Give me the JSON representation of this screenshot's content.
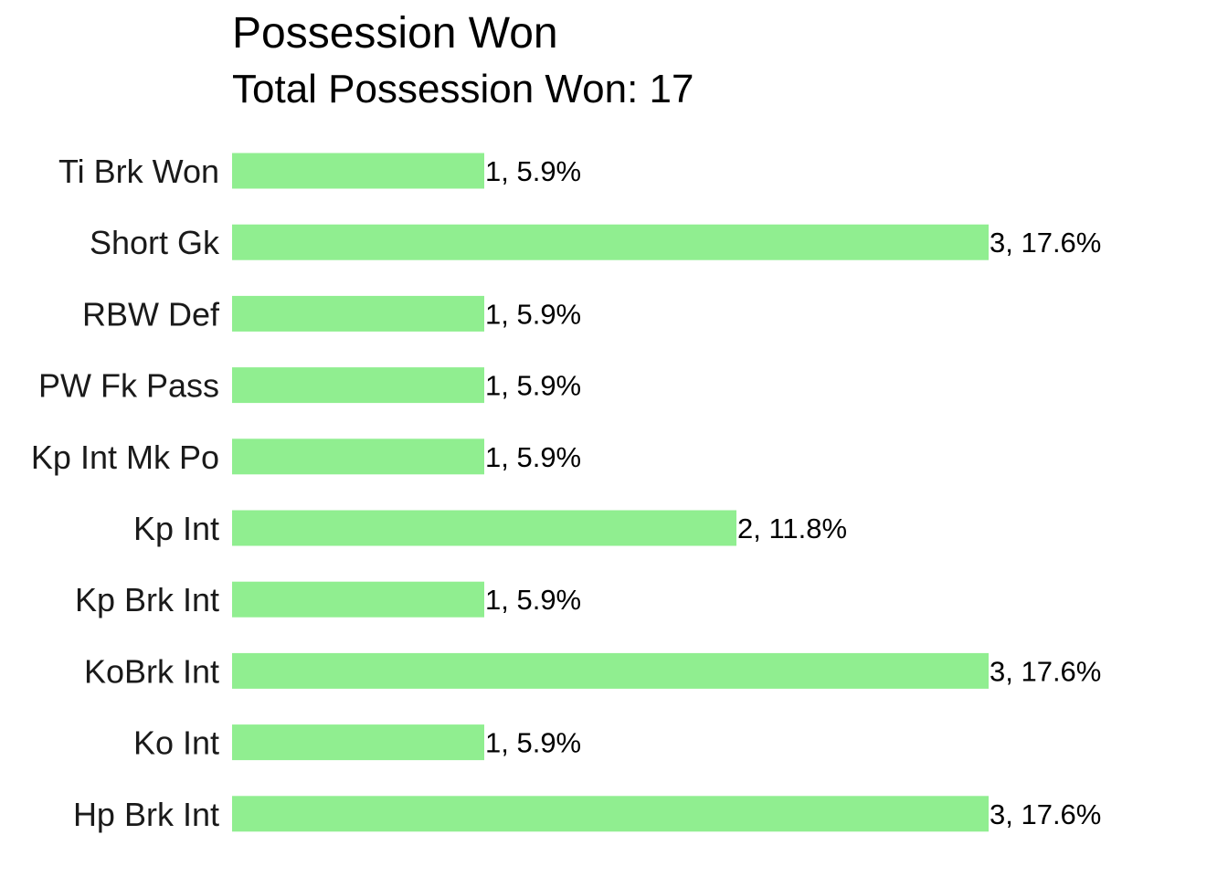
{
  "chart_data": {
    "type": "bar",
    "orientation": "horizontal",
    "title": "Possession Won",
    "subtitle": "Total Possession Won: 17",
    "xlabel": "",
    "ylabel": "",
    "grid": false,
    "legend": "none",
    "bar_color": "#90EE90",
    "xlim": [
      0,
      3
    ],
    "categories": [
      "Ti Brk Won",
      "Short Gk",
      "RBW Def",
      "PW Fk Pass",
      "Kp Int Mk Po",
      "Kp Int",
      "Kp Brk Int",
      "KoBrk Int",
      "Ko Int",
      "Hp Brk Int"
    ],
    "values": [
      1,
      3,
      1,
      1,
      1,
      2,
      1,
      3,
      1,
      3
    ],
    "data_labels": [
      "1, 5.9%",
      "3, 17.6%",
      "1, 5.9%",
      "1, 5.9%",
      "1, 5.9%",
      "2, 11.8%",
      "1, 5.9%",
      "3, 17.6%",
      "1, 5.9%",
      "3, 17.6%"
    ]
  }
}
